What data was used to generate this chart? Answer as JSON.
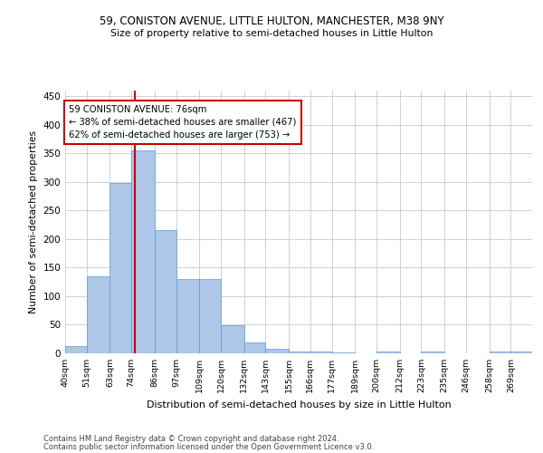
{
  "title_line1": "59, CONISTON AVENUE, LITTLE HULTON, MANCHESTER, M38 9NY",
  "title_line2": "Size of property relative to semi-detached houses in Little Hulton",
  "xlabel": "Distribution of semi-detached houses by size in Little Hulton",
  "ylabel": "Number of semi-detached properties",
  "footer_line1": "Contains HM Land Registry data © Crown copyright and database right 2024.",
  "footer_line2": "Contains public sector information licensed under the Open Government Licence v3.0.",
  "annotation_title": "59 CONISTON AVENUE: 76sqm",
  "annotation_line1": "← 38% of semi-detached houses are smaller (467)",
  "annotation_line2": "62% of semi-detached houses are larger (753) →",
  "property_size": 76,
  "categories": [
    "40sqm",
    "51sqm",
    "63sqm",
    "74sqm",
    "86sqm",
    "97sqm",
    "109sqm",
    "120sqm",
    "132sqm",
    "143sqm",
    "155sqm",
    "166sqm",
    "177sqm",
    "189sqm",
    "200sqm",
    "212sqm",
    "223sqm",
    "235sqm",
    "246sqm",
    "258sqm",
    "269sqm"
  ],
  "bin_edges": [
    40,
    51,
    63,
    74,
    86,
    97,
    109,
    120,
    132,
    143,
    155,
    166,
    177,
    189,
    200,
    212,
    223,
    235,
    246,
    258,
    269,
    280
  ],
  "values": [
    13,
    135,
    298,
    355,
    215,
    130,
    130,
    49,
    19,
    8,
    3,
    3,
    1,
    0,
    3,
    0,
    3,
    0,
    0,
    3,
    3
  ],
  "bar_color": "#aec6e8",
  "bar_edge_color": "#5b9bd5",
  "grid_color": "#d0d0d0",
  "vline_color": "#cc0000",
  "annotation_box_color": "#cc0000",
  "ylim": [
    0,
    460
  ],
  "yticks": [
    0,
    50,
    100,
    150,
    200,
    250,
    300,
    350,
    400,
    450
  ],
  "bg_color": "#ffffff"
}
